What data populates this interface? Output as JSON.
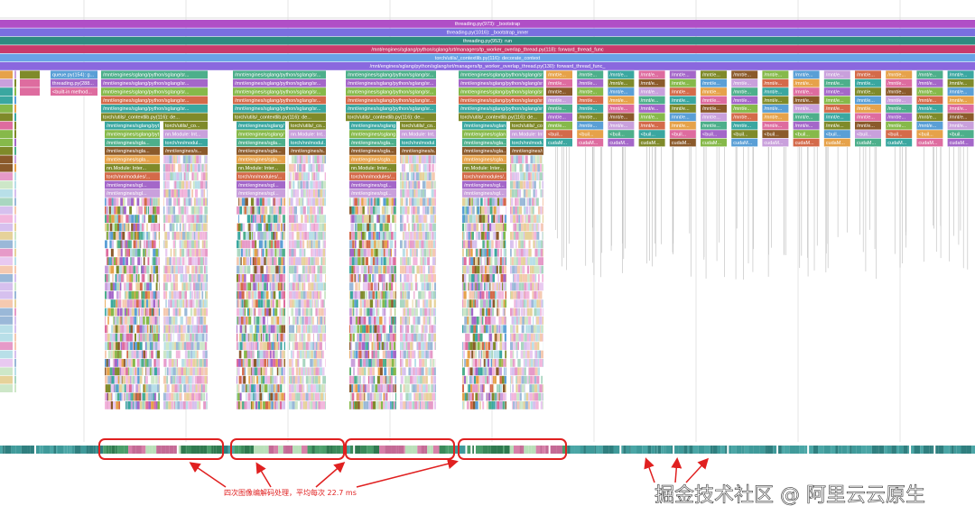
{
  "root_frames": [
    "threading.py(973): _bootstrap",
    "threading.py(1016): _bootstrap_inner",
    "threading.py(953): run",
    "/mnt/engines/sglang/python/sglang/srt/managers/tp_worker_overlap_thread.py(118): forward_thread_func",
    "torch/utils/_contextlib.py(116): decorate_context",
    "/mnt/engines/sglang/python/sglang/srt/managers/tp_worker_overlap_thread.py(130): forward_thread_func_"
  ],
  "queue_column": [
    "queue.py(154): g...",
    "threading.py(288...",
    "<built-in method..."
  ],
  "cluster": {
    "top": [
      "/mnt/engines/sglang/python/sglang/sr...",
      "/mnt/engines/sglang/python/sglang/sr...",
      "/mnt/engines/sglang/python/sglang/sr...",
      "/mnt/engines/sglang/python/sglang/sr...",
      "/mnt/engines/sglang/python/sglang/sr...",
      "torch/utils/_contextlib.py(116): de..."
    ],
    "main": [
      "/mnt/engines/sglang/python/sglang/s...",
      "/mnt/engines/sglang/python/sglang/...",
      "/mnt/engines/sgla...",
      "/mnt/engines/sgla...",
      "/mnt/engines/sgla...",
      "nn.Module: Inter...",
      "torch/nn/modules/...",
      "/mnt/engines/sgl...",
      "/mnt/engines/sgl..."
    ],
    "side": [
      "torch/utils/_co...",
      "nn.Module: Int...",
      "torch/nn/modul...",
      "/mnt/engines/s..."
    ]
  },
  "small_column": [
    "/mnt/e...",
    "/mnt/e...",
    "/mnt/e...",
    "/mnt/e...",
    "/mnt/e...",
    "/mnt/e...",
    "/mnt/e...",
    "<buil...",
    "cudaM..."
  ],
  "annotation": "四次图像编解码处理，平均每次 22.7 ms",
  "watermark": "掘金技术社区 @ 阿里云云原生"
}
